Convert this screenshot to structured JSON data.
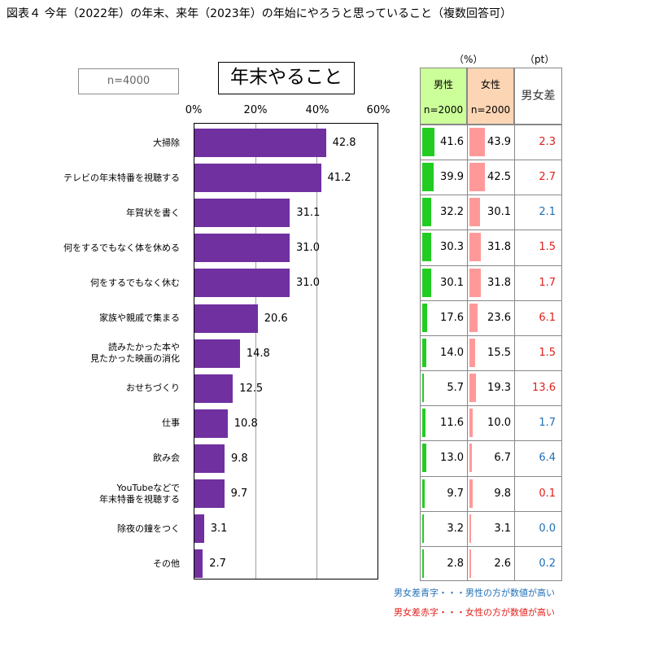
{
  "figure_title": "図表４ 今年（2022年）の年末、来年（2023年）の年始にやろうと思っていること（複数回答可）",
  "sample_size": "n=4000",
  "chart_data": {
    "type": "bar",
    "orientation": "horizontal",
    "title": "年末やること",
    "xlim": [
      0,
      60
    ],
    "x_ticks": [
      "0%",
      "20%",
      "40%",
      "60%"
    ],
    "grid": true,
    "categories": [
      [
        "大掃除"
      ],
      [
        "テレビの年末特番を視聴する"
      ],
      [
        "年賀状を書く"
      ],
      [
        "何をするでもなく体を休める"
      ],
      [
        "何をするでもなく休む"
      ],
      [
        "家族や親戚で集まる"
      ],
      [
        "読みたかった本や",
        "見たかった映画の消化"
      ],
      [
        "おせちづくり"
      ],
      [
        "仕事"
      ],
      [
        "飲み会"
      ],
      [
        "YouTubeなどで",
        "年末特番を視聴する"
      ],
      [
        "除夜の鐘をつく"
      ],
      [
        "その他"
      ]
    ],
    "values": [
      42.8,
      41.2,
      31.1,
      31.0,
      31.0,
      20.6,
      14.8,
      12.5,
      10.8,
      9.8,
      9.7,
      3.1,
      2.7
    ],
    "value_labels": [
      "42.8",
      "41.2",
      "31.1",
      "31.0",
      "31.0",
      "20.6",
      "14.8",
      "12.5",
      "10.8",
      "9.8",
      "9.7",
      "3.1",
      "2.7"
    ]
  },
  "table": {
    "unit_pct": "（%）",
    "unit_pt": "（pt）",
    "male_label": "男性",
    "male_n": "n=2000",
    "female_label": "女性",
    "female_n": "n=2000",
    "diff_label": "男女差",
    "male": [
      41.6,
      39.9,
      32.2,
      30.3,
      30.1,
      17.6,
      14.0,
      5.7,
      11.6,
      13.0,
      9.7,
      3.2,
      2.8
    ],
    "male_labels": [
      "41.6",
      "39.9",
      "32.2",
      "30.3",
      "30.1",
      "17.6",
      "14.0",
      "5.7",
      "11.6",
      "13.0",
      "9.7",
      "3.2",
      "2.8"
    ],
    "female": [
      43.9,
      42.5,
      30.1,
      31.8,
      31.8,
      23.6,
      15.5,
      19.3,
      10.0,
      6.7,
      9.8,
      3.1,
      2.6
    ],
    "female_labels": [
      "43.9",
      "42.5",
      "30.1",
      "31.8",
      "31.8",
      "23.6",
      "15.5",
      "19.3",
      "10.0",
      "6.7",
      "9.8",
      "3.1",
      "2.6"
    ],
    "diff_labels": [
      "2.3",
      "2.7",
      "2.1",
      "1.5",
      "1.7",
      "6.1",
      "1.5",
      "13.6",
      "1.7",
      "6.4",
      "0.1",
      "0.0",
      "0.2"
    ],
    "diff_colors": [
      "red",
      "red",
      "blue",
      "red",
      "red",
      "red",
      "red",
      "red",
      "blue",
      "blue",
      "red",
      "blue",
      "blue"
    ],
    "colors": {
      "male_bar": "#22cc22",
      "female_bar": "#ff9999",
      "red": "#e0201a",
      "blue": "#1f6fb8",
      "main_bar": "#7030a0"
    }
  },
  "notes": {
    "blue": "男女差青字・・・男性の方が数値が高い",
    "red": "男女差赤字・・・女性の方が数値が高い"
  }
}
